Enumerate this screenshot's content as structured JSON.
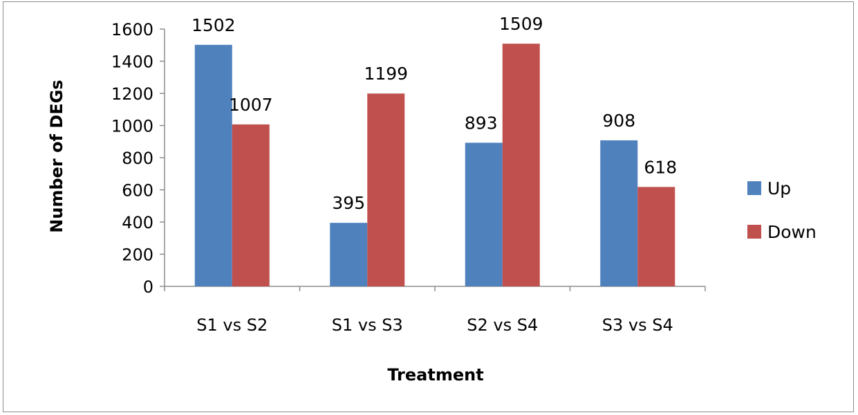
{
  "chart_data": {
    "type": "bar",
    "categories": [
      "S1 vs S2",
      "S1 vs S3",
      "S2 vs S4",
      "S3 vs S4"
    ],
    "series": [
      {
        "name": "Up",
        "values": [
          1502,
          395,
          893,
          908
        ],
        "color": "#4F81BD"
      },
      {
        "name": "Down",
        "values": [
          1007,
          1199,
          1509,
          618
        ],
        "color": "#C0504D"
      }
    ],
    "title": "",
    "xlabel": "Treatment",
    "ylabel": "Number of DEGs",
    "ylim": [
      0,
      1600
    ],
    "yticks": [
      0,
      200,
      400,
      600,
      800,
      1000,
      1200,
      1400,
      1600
    ],
    "grid": false,
    "legend_position": "right"
  }
}
